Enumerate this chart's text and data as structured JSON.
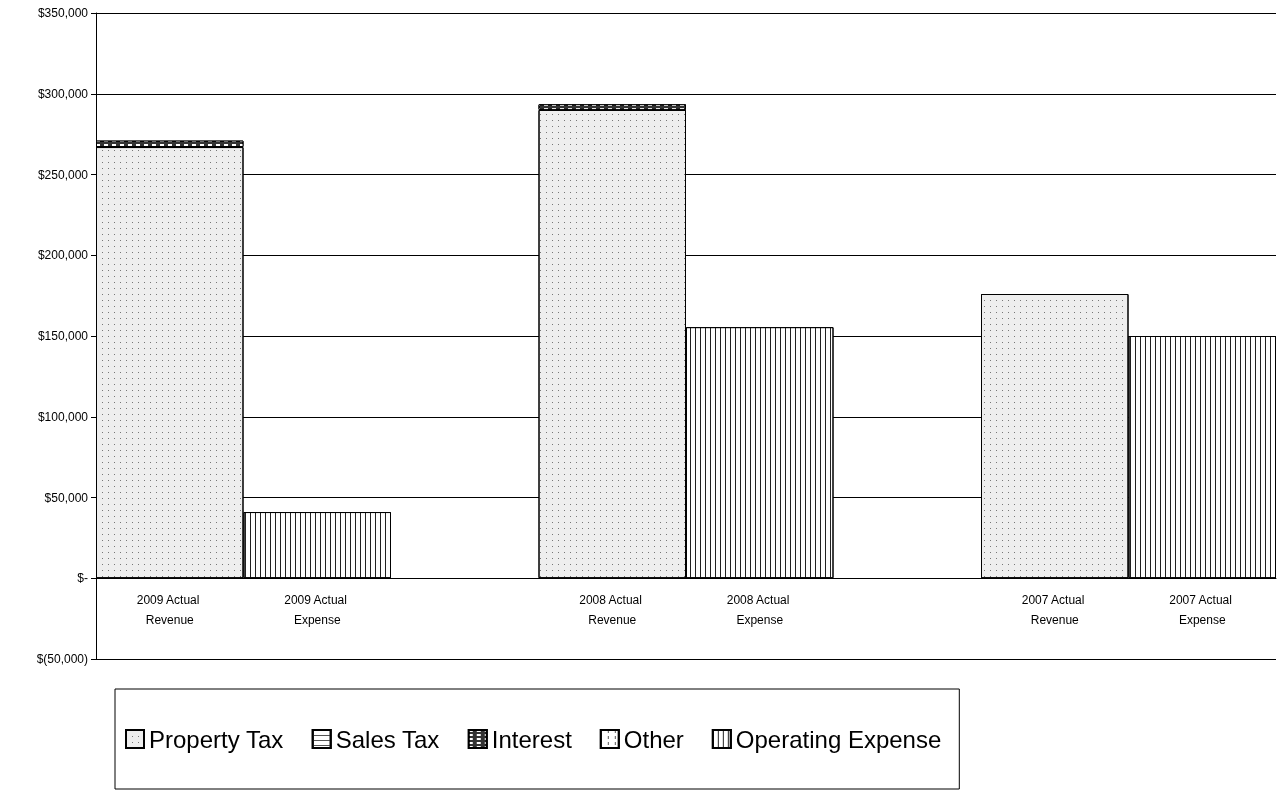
{
  "chart_data": {
    "type": "bar",
    "stacked": true,
    "categories": [
      "2009 Actual Revenue",
      "2009 Actual Expense",
      null,
      "2008 Actual Revenue",
      "2008 Actual Expense",
      null,
      "2007 Actual Revenue",
      "2007 Actual Expense"
    ],
    "series": [
      {
        "name": "Property Tax",
        "color": "#eeeeee",
        "values": [
          267000,
          null,
          null,
          290000,
          null,
          null,
          176000,
          null
        ]
      },
      {
        "name": "Sales Tax",
        "color": "#ffffff",
        "values": [
          null,
          null,
          null,
          null,
          null,
          null,
          null,
          null
        ]
      },
      {
        "name": "Interest",
        "color": "#333333",
        "values": [
          4000,
          null,
          null,
          3500,
          null,
          null,
          null,
          null
        ]
      },
      {
        "name": "Other",
        "color": "#ffffff",
        "values": [
          null,
          null,
          null,
          null,
          null,
          null,
          null,
          null
        ]
      },
      {
        "name": "Operating Expense",
        "color": "#ffffff",
        "values": [
          null,
          41000,
          null,
          null,
          155500,
          null,
          null,
          150000
        ]
      }
    ],
    "ylim": [
      -50000,
      350000
    ],
    "yticks": [
      {
        "value": -50000,
        "label": "$(50,000)"
      },
      {
        "value": 0,
        "label": "$-"
      },
      {
        "value": 50000,
        "label": "$50,000"
      },
      {
        "value": 100000,
        "label": "$100,000"
      },
      {
        "value": 150000,
        "label": "$150,000"
      },
      {
        "value": 200000,
        "label": "$200,000"
      },
      {
        "value": 250000,
        "label": "$250,000"
      },
      {
        "value": 300000,
        "label": "$300,000"
      },
      {
        "value": 350000,
        "label": "$350,000"
      }
    ],
    "grid": "y",
    "legend": "bottom"
  }
}
